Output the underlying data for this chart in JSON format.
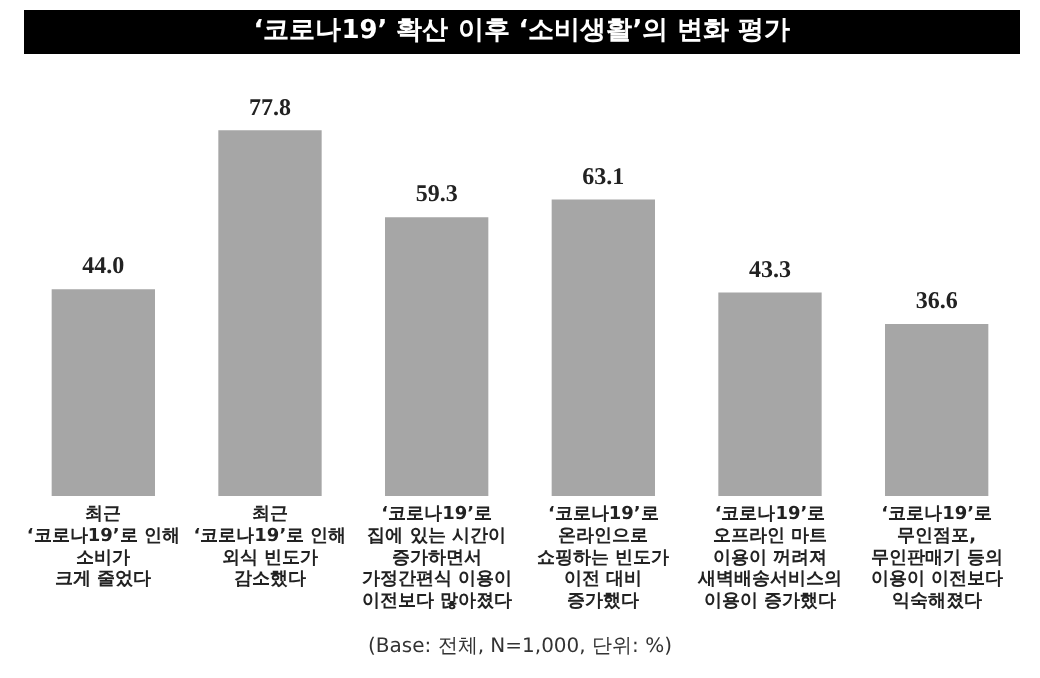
{
  "chart_data": {
    "type": "bar",
    "title": "‘코로나19’ 확산 이후 ‘소비생활’의 변화 평가",
    "categories": [
      "최근\n‘코로나19’로 인해\n소비가\n크게 줄었다",
      "최근\n‘코로나19’로 인해\n외식 빈도가\n감소했다",
      "‘코로나19’로\n집에 있는 시간이\n증가하면서\n가정간편식 이용이\n이전보다 많아졌다",
      "‘코로나19’로\n온라인으로\n쇼핑하는 빈도가\n이전 대비\n증가했다",
      "‘코로나19’로\n오프라인 마트\n이용이 꺼려져\n새벽배송서비스의\n이용이 증가했다",
      "‘코로나19’로\n무인점포,\n무인판매기 등의\n이용이 이전보다\n익숙해졌다"
    ],
    "values": [
      44.0,
      77.8,
      59.3,
      63.1,
      43.3,
      36.6
    ],
    "value_labels": [
      "44.0",
      "77.8",
      "59.3",
      "63.1",
      "43.3",
      "36.6"
    ],
    "color": "#a6a6a6",
    "grid": false,
    "legend": false,
    "annotations": [
      "(Base: 전체, N=1,000, 단위: %)"
    ]
  }
}
